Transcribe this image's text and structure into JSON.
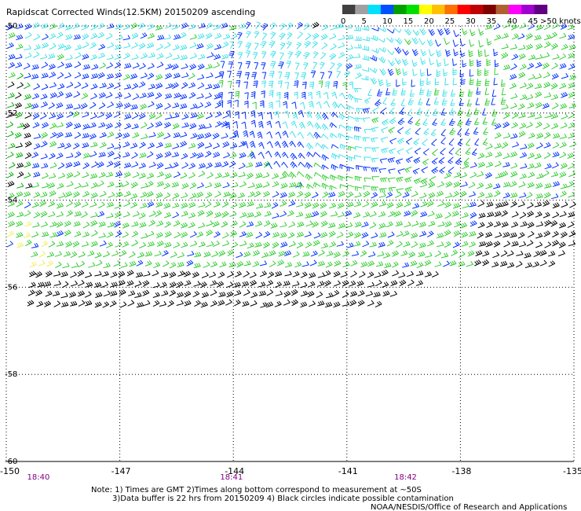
{
  "title": "Rapidscat Corrected Winds(12.5KM) 20150209 ascending",
  "legend": {
    "labels": [
      "0",
      "5",
      "10",
      "15",
      "20",
      "25",
      "30",
      "35",
      "40",
      "45",
      ">50 knots"
    ],
    "colors": [
      "#404040",
      "#a0a0a0",
      "#00e0ff",
      "#0050ff",
      "#00a000",
      "#00e000",
      "#ffff00",
      "#ffc000",
      "#ff7000",
      "#ff0000",
      "#c00000",
      "#800000",
      "#b06030",
      "#ff00ff",
      "#a000d0",
      "#600080"
    ]
  },
  "map": {
    "x_ticks": [
      "-150",
      "-147",
      "-144",
      "-141",
      "-138",
      "-135"
    ],
    "y_ticks": [
      "-50",
      "-52",
      "-54",
      "-56",
      "-58",
      "-60"
    ],
    "lon_range": [
      -150,
      -135
    ],
    "lat_range": [
      -60,
      -50
    ],
    "grid": true,
    "time_labels": [
      "18:40",
      "18:41",
      "18:42"
    ],
    "time_lons": [
      -149.2,
      -144.1,
      -139.5
    ]
  },
  "wind_field": {
    "lat_extent": [
      -56.5,
      -50
    ],
    "speed_bins_knots": [
      0,
      5,
      10,
      15,
      20,
      25,
      30,
      35,
      40,
      45,
      50
    ],
    "dominant": "westerly"
  },
  "notes": {
    "line1": "Note: 1) Times are GMT 2)Times along bottom correspond to measurement at ~50S",
    "line2": "3)Data buffer is 22 hrs from 20150209 4) Black circles indicate possible contamination",
    "credit": "NOAA/NESDIS/Office of Research and Applications"
  }
}
